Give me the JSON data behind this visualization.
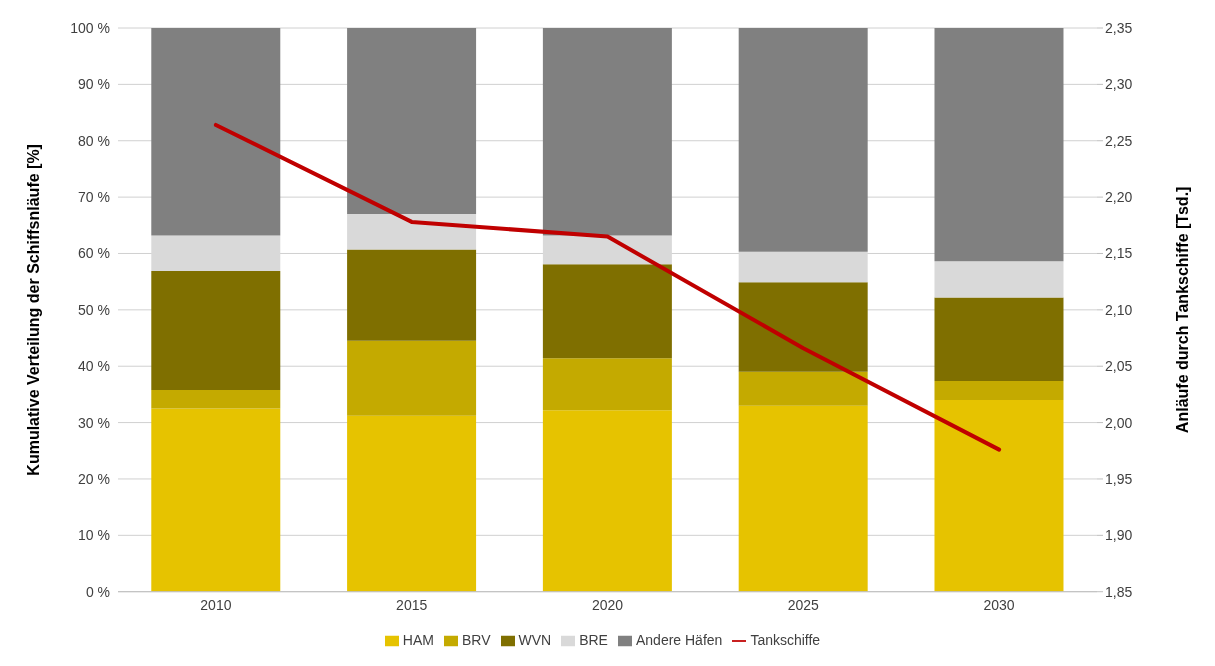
{
  "chart_data": {
    "type": "bar",
    "stacked": true,
    "ylabel": "Kumulative Verteilung der Schiffsnläufe [%]",
    "y2label": "Anläufe durch Tankschiffe  [Tsd.]",
    "categories": [
      "2010",
      "2015",
      "2020",
      "2025",
      "2030"
    ],
    "series": [
      {
        "name": "HAM",
        "color": "#e6c300",
        "values": [
          32.5,
          31.2,
          32.2,
          33.0,
          34.0
        ]
      },
      {
        "name": "BRV",
        "color": "#c4aa00",
        "values": [
          3.3,
          13.3,
          9.2,
          6.0,
          3.4
        ]
      },
      {
        "name": "WVN",
        "color": "#7f6f00",
        "values": [
          21.1,
          16.2,
          16.7,
          15.9,
          14.8
        ]
      },
      {
        "name": "BRE",
        "color": "#d9d9d9",
        "values": [
          6.3,
          6.3,
          5.1,
          5.4,
          6.4
        ]
      },
      {
        "name": "Andere Häfen",
        "color": "#808080",
        "values": [
          36.8,
          33.0,
          36.8,
          39.7,
          41.4
        ]
      },
      {
        "name": "Tankschiffe",
        "type": "line",
        "axis": "y2",
        "color": "#c00000",
        "values": [
          2.264,
          2.178,
          2.165,
          2.066,
          1.976
        ]
      }
    ],
    "ylim": [
      0,
      100
    ],
    "yticks": [
      {
        "value": 0,
        "label": "0 %"
      },
      {
        "value": 10,
        "label": "10 %"
      },
      {
        "value": 20,
        "label": "20 %"
      },
      {
        "value": 30,
        "label": "30 %"
      },
      {
        "value": 40,
        "label": "40 %"
      },
      {
        "value": 50,
        "label": "50 %"
      },
      {
        "value": 60,
        "label": "60 %"
      },
      {
        "value": 70,
        "label": "70 %"
      },
      {
        "value": 80,
        "label": "80 %"
      },
      {
        "value": 90,
        "label": "90 %"
      },
      {
        "value": 100,
        "label": "100 %"
      }
    ],
    "y2lim": [
      1.85,
      2.35
    ],
    "y2ticks": [
      {
        "value": 1.85,
        "label": "1,85"
      },
      {
        "value": 1.9,
        "label": "1,90"
      },
      {
        "value": 1.95,
        "label": "1,95"
      },
      {
        "value": 2.0,
        "label": "2,00"
      },
      {
        "value": 2.05,
        "label": "2,05"
      },
      {
        "value": 2.1,
        "label": "2,10"
      },
      {
        "value": 2.15,
        "label": "2,15"
      },
      {
        "value": 2.2,
        "label": "2,20"
      },
      {
        "value": 2.25,
        "label": "2,25"
      },
      {
        "value": 2.3,
        "label": "2,30"
      },
      {
        "value": 2.35,
        "label": "2,35"
      }
    ],
    "grid": "y",
    "legend": "bottom",
    "marker": "none",
    "line_style": "solid"
  }
}
